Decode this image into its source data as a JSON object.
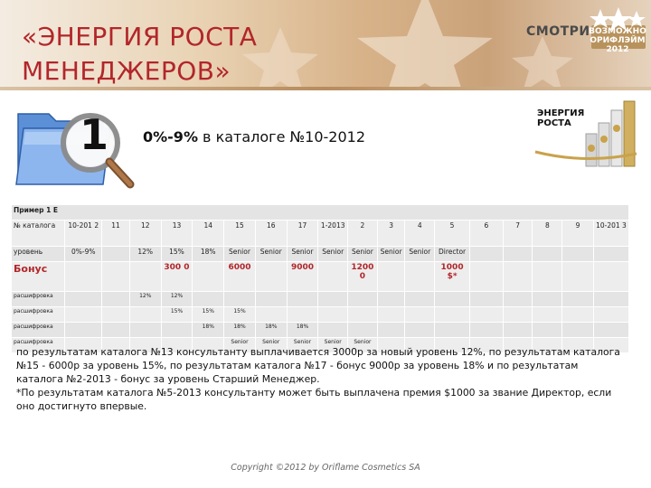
{
  "header": {
    "title": "«ЭНЕРГИЯ РОСТА\nМЕНЕДЖЕРОВ»",
    "brand": "СМОТРИ...",
    "badge_text": "ВОЗМОЖНО\nОРИФЛЭЙМ 2012"
  },
  "step": {
    "number": "1",
    "range": "0%-9%",
    "catalog_text": " в каталоге №10-2012"
  },
  "promo_logo": {
    "text": "ЭНЕРГИЯ\nРОСТА"
  },
  "table": {
    "caption": "Пример 1 Е",
    "header_row": [
      "№ каталога",
      "10-201 2",
      "11",
      "12",
      "13",
      "14",
      "15",
      "16",
      "17",
      "1-2013",
      "2",
      "3",
      "4",
      "5",
      "6",
      "7",
      "8",
      "9",
      "10-201 3"
    ],
    "level_row": [
      "уровень",
      "0%-9%",
      "",
      "12%",
      "15%",
      "18%",
      "Senior",
      "Senior",
      "Senior",
      "Senior",
      "Senior",
      "Senior",
      "Senior",
      "Director",
      "",
      "",
      "",
      "",
      ""
    ],
    "bonus_row": [
      "Бонус",
      "",
      "",
      "",
      "300 0",
      "",
      "6000",
      "",
      "9000",
      "",
      "12000",
      "",
      "",
      "1000 $*",
      "",
      "",
      "",
      "",
      ""
    ],
    "breakdown_rows": [
      [
        "расшифровка",
        "",
        "",
        "12%",
        "12%",
        "",
        "",
        "",
        "",
        "",
        "",
        "",
        "",
        "",
        "",
        "",
        "",
        "",
        ""
      ],
      [
        "расшифровка",
        "",
        "",
        "",
        "15%",
        "15%",
        "15%",
        "",
        "",
        "",
        "",
        "",
        "",
        "",
        "",
        "",
        "",
        "",
        ""
      ],
      [
        "расшифровка",
        "",
        "",
        "",
        "",
        "18%",
        "18%",
        "18%",
        "18%",
        "",
        "",
        "",
        "",
        "",
        "",
        "",
        "",
        "",
        ""
      ],
      [
        "расшифровка",
        "",
        "",
        "",
        "",
        "",
        "Senior",
        "Senior",
        "Senior",
        "Senior",
        "Senior",
        "",
        "",
        "",
        "",
        "",
        "",
        "",
        ""
      ]
    ]
  },
  "description": {
    "paragraph_1": "по результатам каталога №13 консультанту выплачивается 3000р за новый уровень 12%, по результатам каталога №15 - 6000р за уровень 15%, по результатам каталога №17 - бонус 9000р за уровень 18% и по результатам каталога №2-2013 - бонус за уровень Старший Менеджер.",
    "paragraph_2": "*По результатам каталога №5-2013 консультанту может быть выплачена премия $1000 за звание Директор, если оно достигнуто впервые."
  },
  "footer": {
    "copyright": "Copyright ©2012 by Oriflame Cosmetics SA"
  },
  "colors": {
    "title_red": "#b2262a",
    "bonus_red": "#b2262a",
    "header_gold": "#d8b38a"
  }
}
